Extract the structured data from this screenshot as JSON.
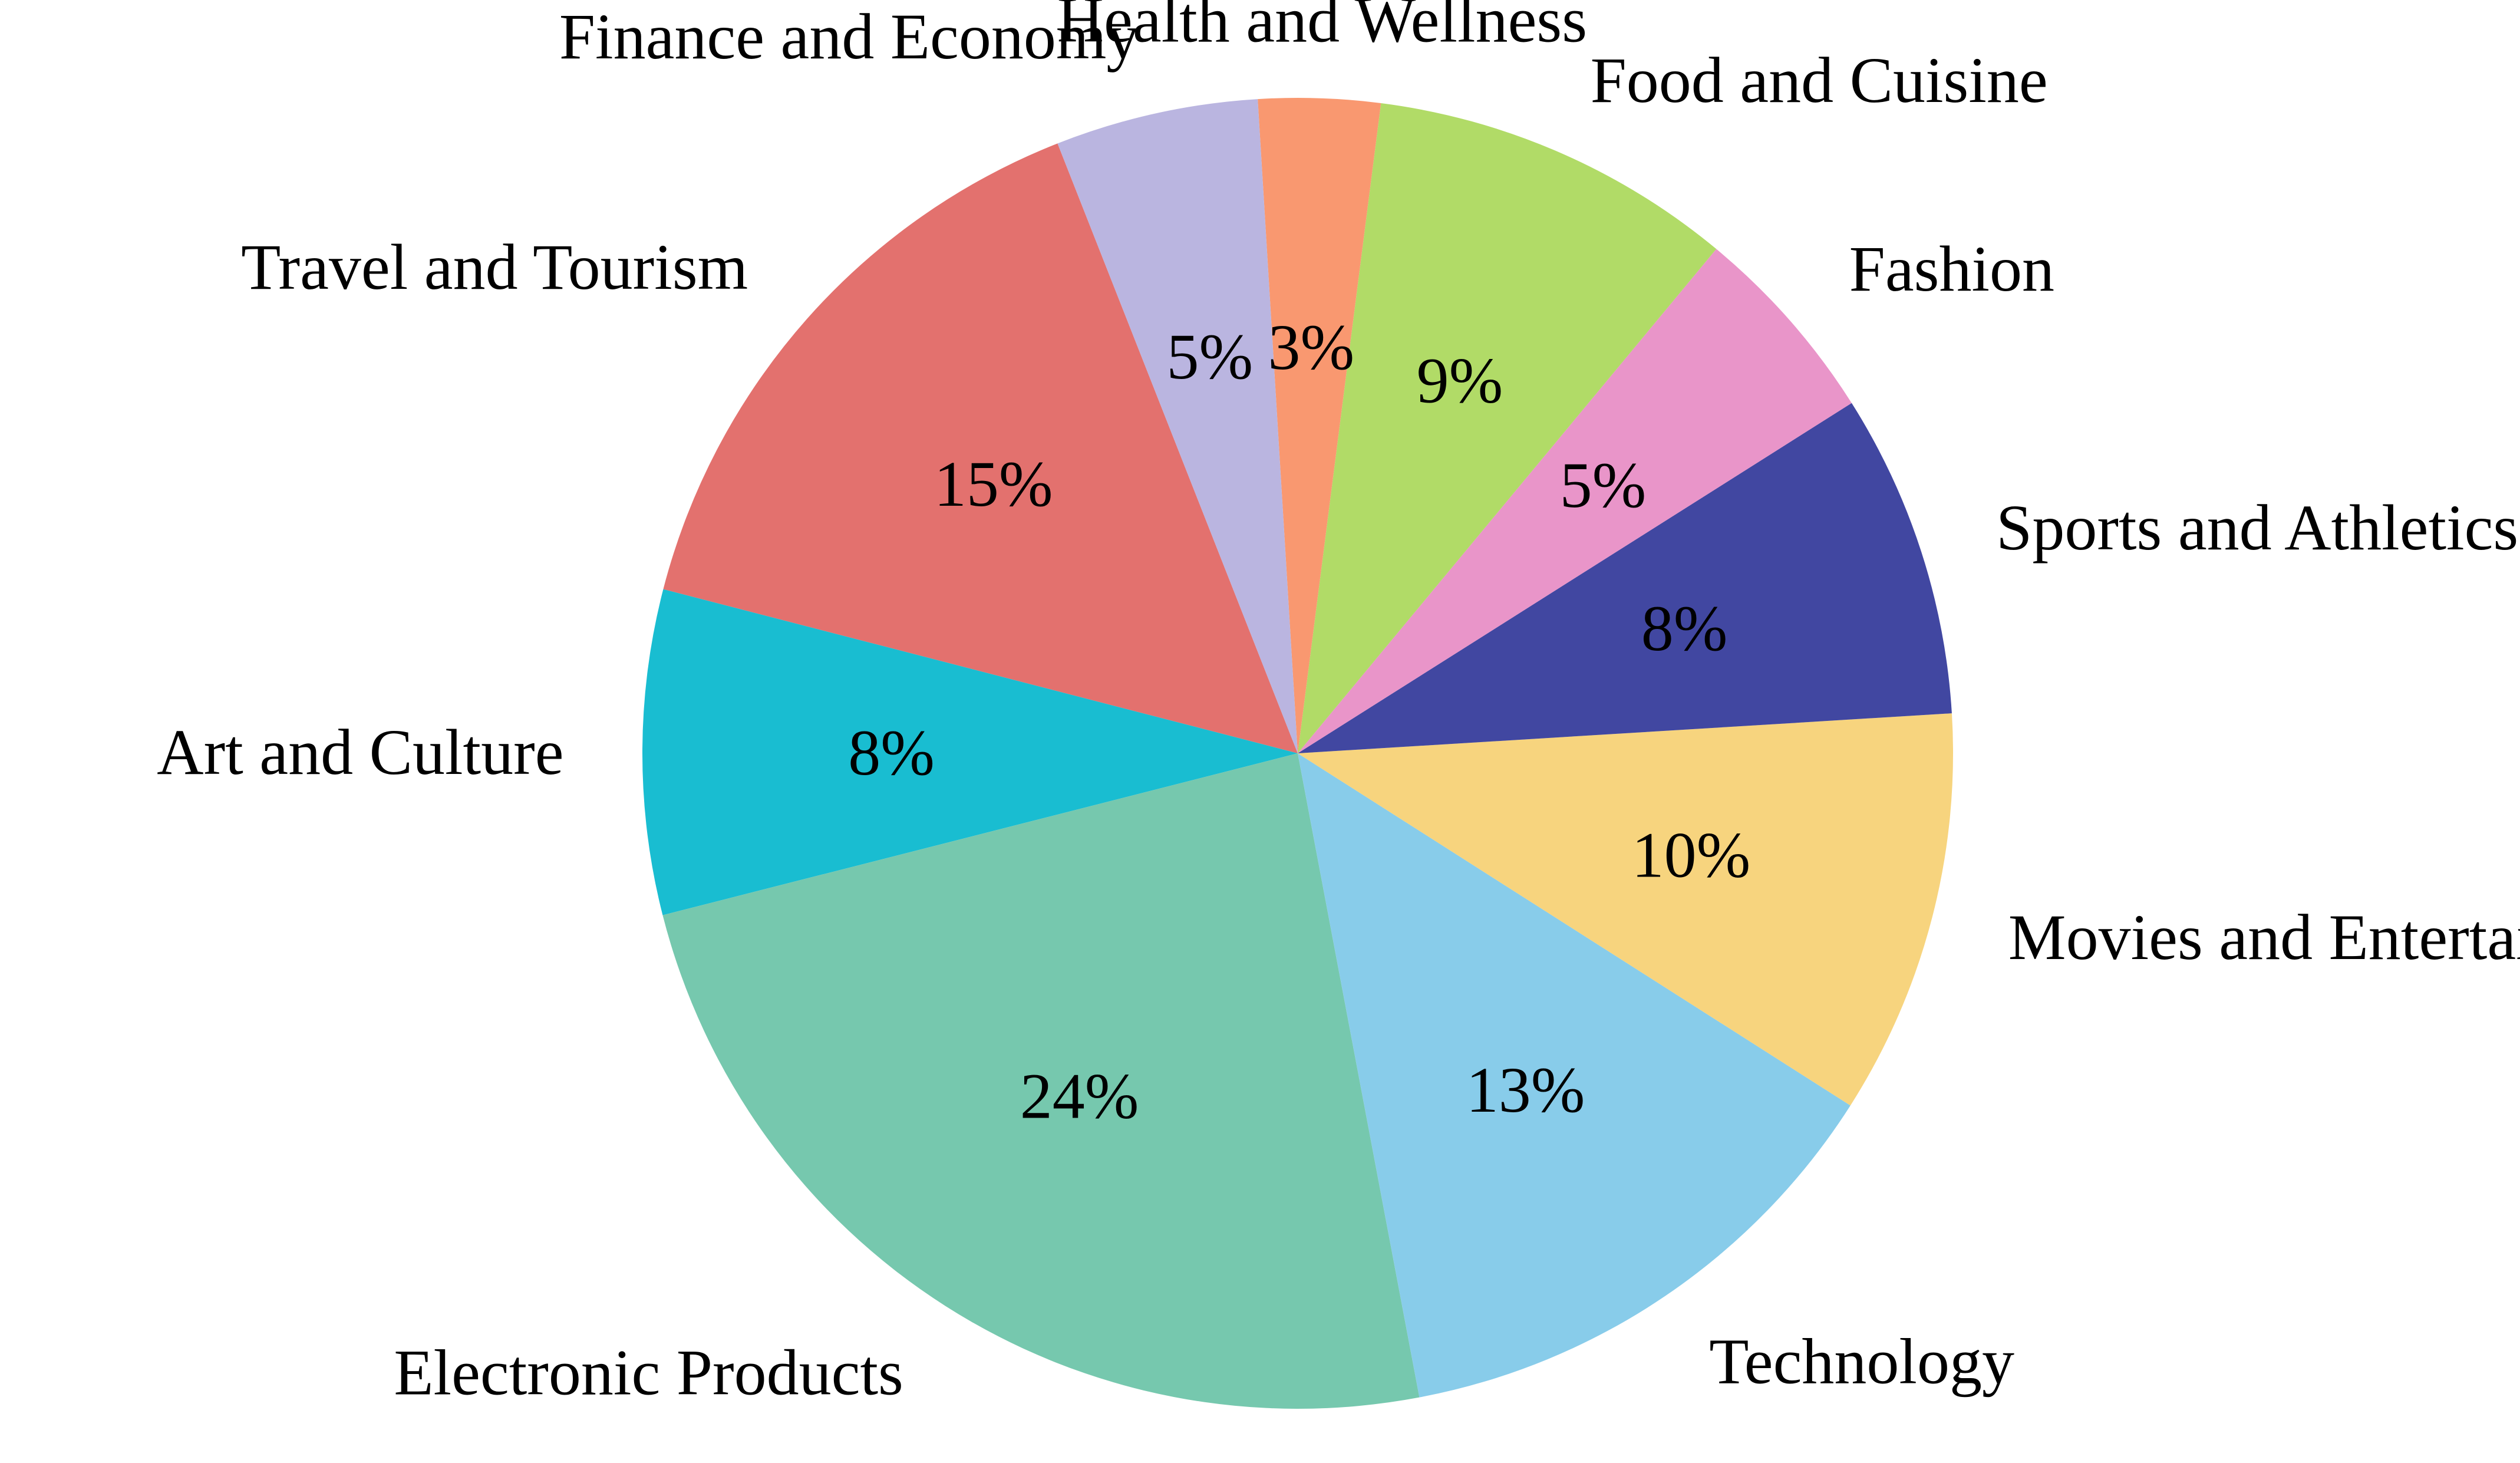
{
  "chart_data": {
    "type": "pie",
    "title": "",
    "legend": "none",
    "start_angle_deg": 111.5,
    "direction": "counterclockwise",
    "slices": [
      {
        "label": "Travel and Tourism",
        "value": 15,
        "pct_text": "15%",
        "color": "#E3716E"
      },
      {
        "label": "Art and Culture",
        "value": 8,
        "pct_text": "8%",
        "color": "#19BDD1"
      },
      {
        "label": "Electronic Products",
        "value": 24,
        "pct_text": "24%",
        "color": "#76C8AE"
      },
      {
        "label": "Technology",
        "value": 13,
        "pct_text": "13%",
        "color": "#88CCEA"
      },
      {
        "label": "Movies and Entertainment",
        "value": 10,
        "pct_text": "10%",
        "color": "#F7D47E"
      },
      {
        "label": "Sports and Athletics",
        "value": 8,
        "pct_text": "8%",
        "color": "#4147A1"
      },
      {
        "label": "Fashion",
        "value": 5,
        "pct_text": "5%",
        "color": "#E995C9"
      },
      {
        "label": "Food and Cuisine",
        "value": 9,
        "pct_text": "9%",
        "color": "#B1DB67"
      },
      {
        "label": "Health and Wellness",
        "value": 3,
        "pct_text": "3%",
        "color": "#F99870"
      },
      {
        "label": "Finance and Economy",
        "value": 5,
        "pct_text": "5%",
        "color": "#BAB5E0"
      }
    ]
  }
}
